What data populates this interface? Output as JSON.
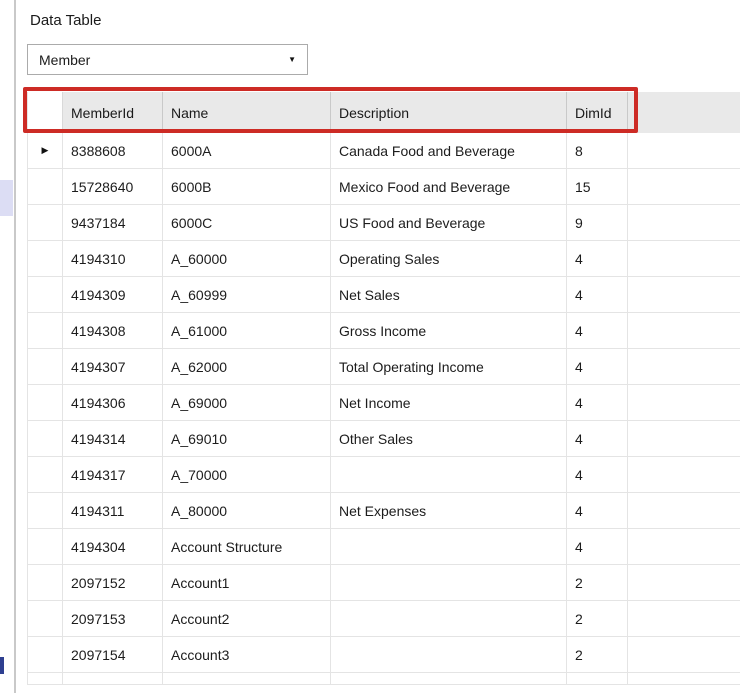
{
  "page": {
    "title_label": "Data Table"
  },
  "selector": {
    "value": "Member",
    "dropdown_icon": "▼"
  },
  "table": {
    "columns": [
      "MemberId",
      "Name",
      "Description",
      "DimId"
    ],
    "row_indicator_icon": "▶",
    "rows": [
      {
        "memberId": "8388608",
        "name": "6000A",
        "description": "Canada Food and Beverage",
        "dimId": "8",
        "current": true
      },
      {
        "memberId": "15728640",
        "name": "6000B",
        "description": "Mexico Food and Beverage",
        "dimId": "15"
      },
      {
        "memberId": "9437184",
        "name": "6000C",
        "description": "US Food and Beverage",
        "dimId": "9"
      },
      {
        "memberId": "4194310",
        "name": "A_60000",
        "description": "Operating Sales",
        "dimId": "4"
      },
      {
        "memberId": "4194309",
        "name": "A_60999",
        "description": "Net Sales",
        "dimId": "4"
      },
      {
        "memberId": "4194308",
        "name": "A_61000",
        "description": "Gross Income",
        "dimId": "4"
      },
      {
        "memberId": "4194307",
        "name": "A_62000",
        "description": "Total Operating Income",
        "dimId": "4"
      },
      {
        "memberId": "4194306",
        "name": "A_69000",
        "description": "Net Income",
        "dimId": "4"
      },
      {
        "memberId": "4194314",
        "name": "A_69010",
        "description": "Other Sales",
        "dimId": "4"
      },
      {
        "memberId": "4194317",
        "name": "A_70000",
        "description": "",
        "dimId": "4"
      },
      {
        "memberId": "4194311",
        "name": "A_80000",
        "description": "Net Expenses",
        "dimId": "4"
      },
      {
        "memberId": "4194304",
        "name": "Account Structure",
        "description": "",
        "dimId": "4"
      },
      {
        "memberId": "2097152",
        "name": "Account1",
        "description": "",
        "dimId": "2"
      },
      {
        "memberId": "2097153",
        "name": "Account2",
        "description": "",
        "dimId": "2"
      },
      {
        "memberId": "2097154",
        "name": "Account3",
        "description": "",
        "dimId": "2"
      }
    ]
  },
  "colors": {
    "highlight_red": "#cd2b25",
    "header_bg": "#e9e9e9",
    "grid_line": "#e4e4e4"
  }
}
